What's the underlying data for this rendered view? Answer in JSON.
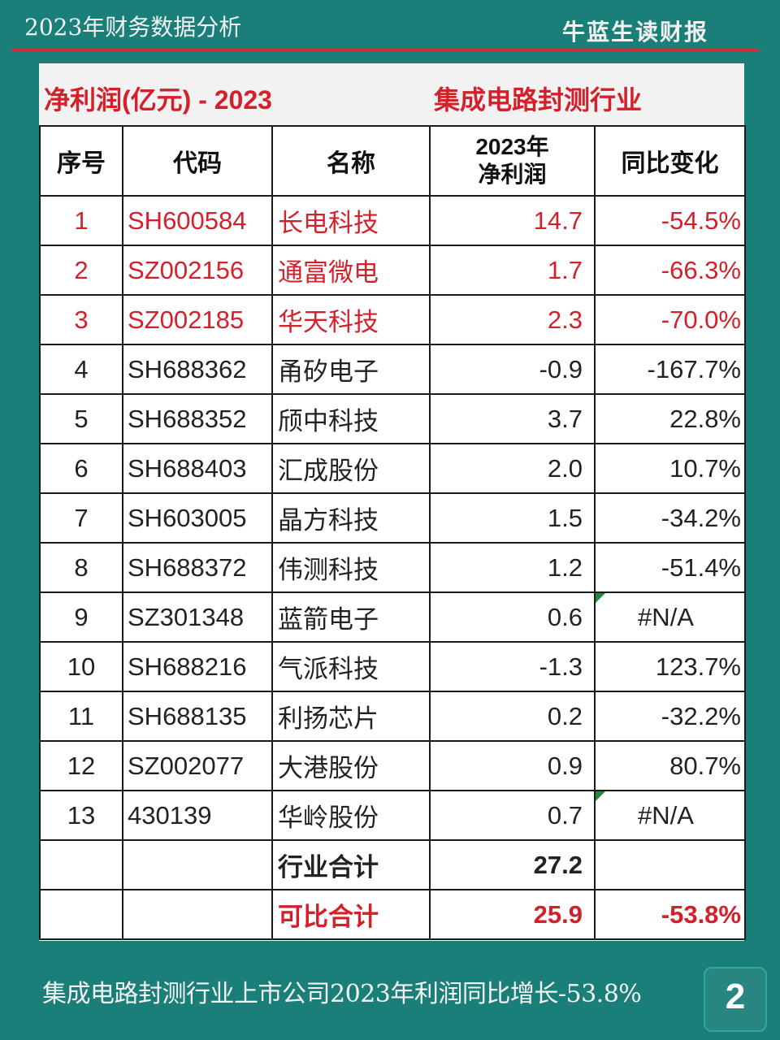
{
  "top": {
    "left_title": "2023年财务数据分析",
    "right_title": "牛蓝生读财报"
  },
  "card": {
    "title_left": "净利润(亿元) - 2023",
    "title_right": "集成电路封测行业"
  },
  "table": {
    "headers": {
      "idx": "序号",
      "code": "代码",
      "name": "名称",
      "profit_line1": "2023年",
      "profit_line2": "净利润",
      "change": "同比变化"
    },
    "rows": [
      {
        "idx": "1",
        "code": "SH600584",
        "name": "长电科技",
        "profit": "14.7",
        "change": "-54.5%"
      },
      {
        "idx": "2",
        "code": "SZ002156",
        "name": "通富微电",
        "profit": "1.7",
        "change": "-66.3%"
      },
      {
        "idx": "3",
        "code": "SZ002185",
        "name": "华天科技",
        "profit": "2.3",
        "change": "-70.0%"
      },
      {
        "idx": "4",
        "code": "SH688362",
        "name": "甬矽电子",
        "profit": "-0.9",
        "change": "-167.7%"
      },
      {
        "idx": "5",
        "code": "SH688352",
        "name": "颀中科技",
        "profit": "3.7",
        "change": "22.8%"
      },
      {
        "idx": "6",
        "code": "SH688403",
        "name": "汇成股份",
        "profit": "2.0",
        "change": "10.7%"
      },
      {
        "idx": "7",
        "code": "SH603005",
        "name": "晶方科技",
        "profit": "1.5",
        "change": "-34.2%"
      },
      {
        "idx": "8",
        "code": "SH688372",
        "name": "伟测科技",
        "profit": "1.2",
        "change": "-51.4%"
      },
      {
        "idx": "9",
        "code": "SZ301348",
        "name": "蓝箭电子",
        "profit": "0.6",
        "change": "#N/A"
      },
      {
        "idx": "10",
        "code": "SH688216",
        "name": "气派科技",
        "profit": "-1.3",
        "change": "123.7%"
      },
      {
        "idx": "11",
        "code": "SH688135",
        "name": "利扬芯片",
        "profit": "0.2",
        "change": "-32.2%"
      },
      {
        "idx": "12",
        "code": "SZ002077",
        "name": "大港股份",
        "profit": "0.9",
        "change": "80.7%"
      },
      {
        "idx": "13",
        "code": "430139",
        "name": "华岭股份",
        "profit": "0.7",
        "change": "#N/A"
      }
    ],
    "total": {
      "label": "行业合计",
      "profit": "27.2"
    },
    "comparable": {
      "label": "可比合计",
      "profit": "25.9",
      "change": "-53.8%"
    }
  },
  "footer": {
    "summary": "集成电路封测行业上市公司2023年利润同比增长-53.8%",
    "page": "2"
  },
  "colors": {
    "background": "#1a7f78",
    "accent_red": "#d4202a",
    "divider": "#c8323a"
  }
}
